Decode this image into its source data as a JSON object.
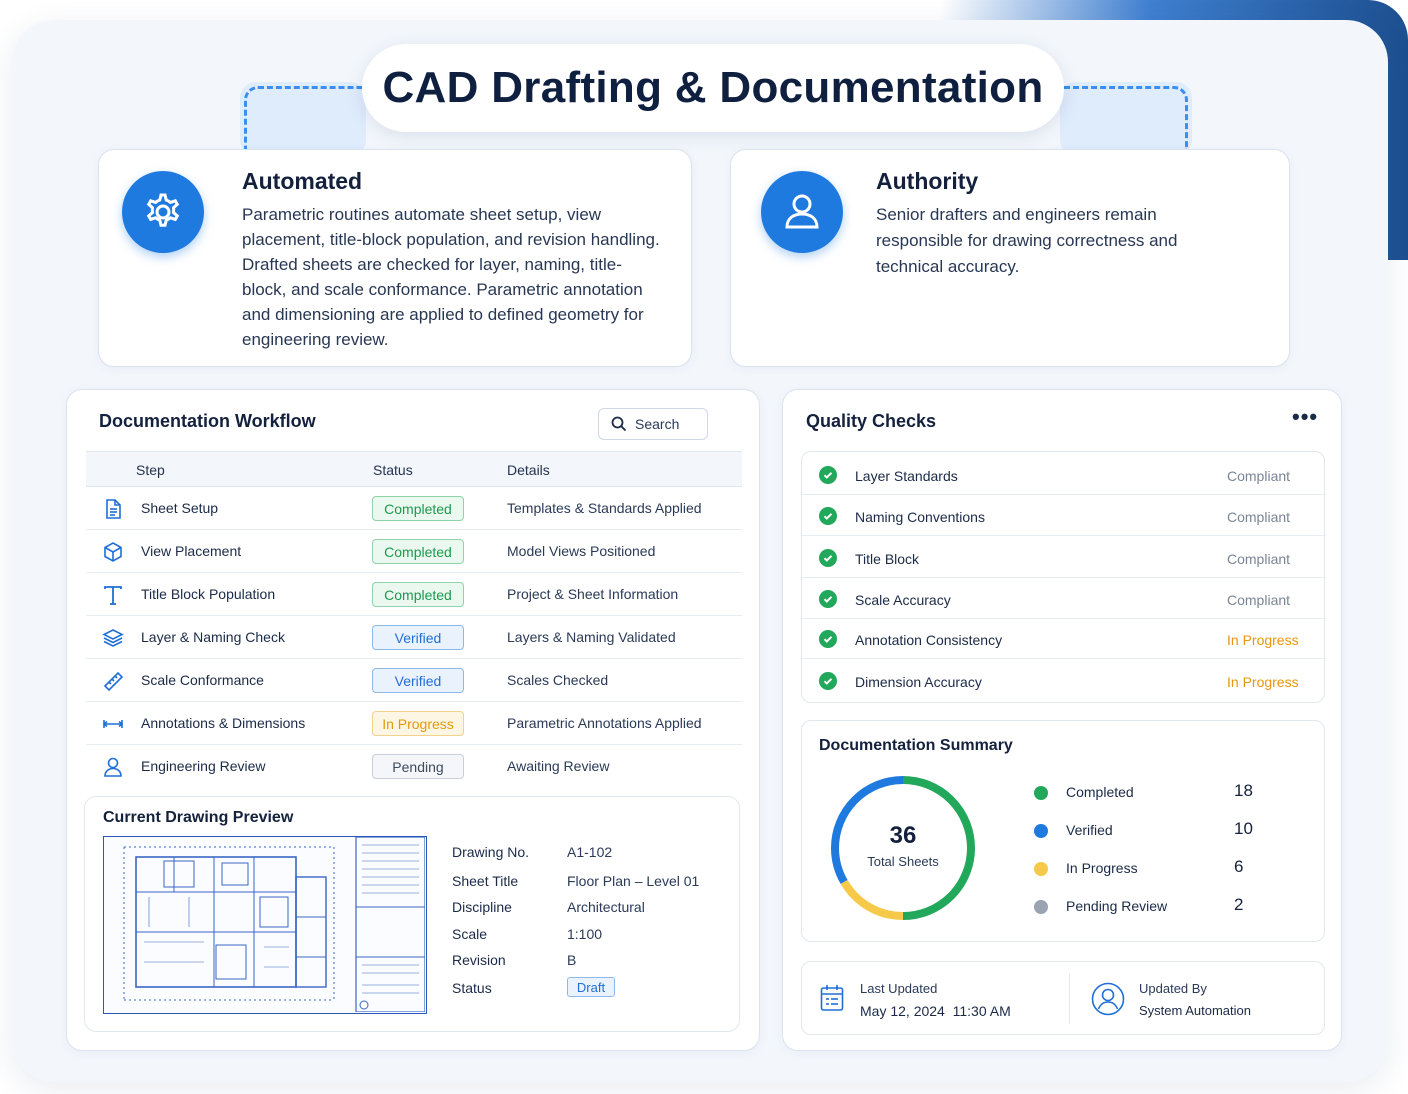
{
  "header": {
    "title": "CAD Drafting & Documentation"
  },
  "features": {
    "automated": {
      "icon": "gear-icon",
      "title": "Automated",
      "body": "Parametric routines automate sheet setup, view placement, title-block population, and revision handling. Drafted sheets are checked for layer, naming, title-block, and scale conformance. Parametric annotation and dimensioning are applied to defined geometry for engineering review."
    },
    "authority": {
      "icon": "user-icon",
      "title": "Authority",
      "body": "Senior drafters and engineers remain responsible for drawing correctness and technical accuracy."
    }
  },
  "workflow": {
    "title": "Documentation Workflow",
    "search_label": "Search",
    "columns": [
      "Step",
      "Status",
      "Details"
    ],
    "rows": [
      {
        "icon": "document-icon",
        "step": "Sheet Setup",
        "status": "Completed",
        "details": "Templates & Standards Applied"
      },
      {
        "icon": "cube-icon",
        "step": "View Placement",
        "status": "Completed",
        "details": "Model Views Positioned"
      },
      {
        "icon": "text-icon",
        "step": "Title Block Population",
        "status": "Completed",
        "details": "Project & Sheet Information"
      },
      {
        "icon": "layers-icon",
        "step": "Layer & Naming Check",
        "status": "Verified",
        "details": "Layers & Naming Validated"
      },
      {
        "icon": "ruler-icon",
        "step": "Scale Conformance",
        "status": "Verified",
        "details": "Scales Checked"
      },
      {
        "icon": "dimension-icon",
        "step": "Annotations & Dimensions",
        "status": "In Progress",
        "details": "Parametric Annotations Applied"
      },
      {
        "icon": "user-icon",
        "step": "Engineering Review",
        "status": "Pending",
        "details": "Awaiting Review"
      }
    ]
  },
  "preview": {
    "title": "Current Drawing Preview",
    "fields": [
      {
        "label": "Drawing No.",
        "value": "A1-102"
      },
      {
        "label": "Sheet Title",
        "value": "Floor Plan – Level 01"
      },
      {
        "label": "Discipline",
        "value": "Architectural"
      },
      {
        "label": "Scale",
        "value": "1:100"
      },
      {
        "label": "Revision",
        "value": "B"
      }
    ],
    "status_label": "Status",
    "status_value": "Draft"
  },
  "quality": {
    "title": "Quality Checks",
    "items": [
      {
        "name": "Layer Standards",
        "state": "Compliant"
      },
      {
        "name": "Naming Conventions",
        "state": "Compliant"
      },
      {
        "name": "Title Block",
        "state": "Compliant"
      },
      {
        "name": "Scale Accuracy",
        "state": "Compliant"
      },
      {
        "name": "Annotation Consistency",
        "state": "In Progress"
      },
      {
        "name": "Dimension Accuracy",
        "state": "In Progress"
      }
    ]
  },
  "summary": {
    "title": "Documentation Summary",
    "total": "36",
    "total_label": "Total Sheets",
    "legend": [
      {
        "label": "Completed",
        "count": "18",
        "color": "#22a85a"
      },
      {
        "label": "Verified",
        "count": "10",
        "color": "#1f7ae0"
      },
      {
        "label": "In Progress",
        "count": "6",
        "color": "#f7c948"
      },
      {
        "label": "Pending Review",
        "count": "2",
        "color": "#9aa3b2"
      }
    ]
  },
  "footer": {
    "last_updated_label": "Last Updated",
    "last_updated_value": "May 12, 2024  11:30 AM",
    "updated_by_label": "Updated By",
    "updated_by_value": "System Automation"
  },
  "colors": {
    "accent": "#1f7ae0",
    "completed": "#22a85a",
    "in_progress": "#e8960c"
  }
}
